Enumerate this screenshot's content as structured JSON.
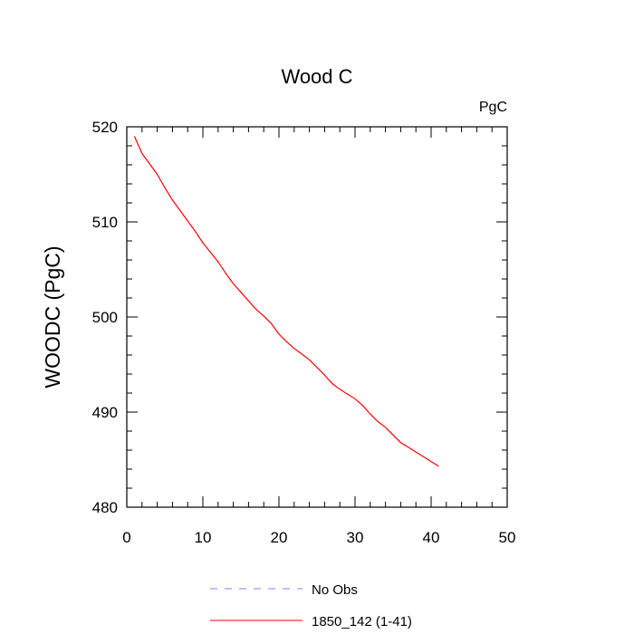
{
  "chart_data": {
    "type": "line",
    "title": "Wood C",
    "units": "PgC",
    "xlabel": "",
    "ylabel": "WOODC  (PgC)",
    "xlim": [
      0,
      50
    ],
    "ylim": [
      480,
      520
    ],
    "xticks": [
      0,
      10,
      20,
      30,
      40,
      50
    ],
    "yticks": [
      480,
      490,
      500,
      510,
      520
    ],
    "grid": false,
    "legend_position": "bottom-center",
    "series": [
      {
        "name": "No Obs",
        "color": "#8080ff",
        "dash": "dashed",
        "x": [],
        "y": []
      },
      {
        "name": "1850_142 (1-41)",
        "color": "#ff0000",
        "dash": "solid",
        "x": [
          1,
          2,
          3,
          4,
          5,
          6,
          7,
          8,
          9,
          10,
          11,
          12,
          13,
          14,
          15,
          16,
          17,
          18,
          19,
          20,
          21,
          22,
          23,
          24,
          25,
          26,
          27,
          28,
          29,
          30,
          31,
          32,
          33,
          34,
          35,
          36,
          37,
          38,
          39,
          40,
          41
        ],
        "y": [
          519.0,
          517.2,
          516.1,
          515.0,
          513.6,
          512.3,
          511.2,
          510.1,
          509.0,
          507.8,
          506.8,
          505.8,
          504.6,
          503.5,
          502.6,
          501.7,
          500.8,
          500.1,
          499.3,
          498.2,
          497.4,
          496.7,
          496.1,
          495.5,
          494.7,
          493.9,
          493.0,
          492.4,
          491.9,
          491.4,
          490.7,
          489.8,
          489.0,
          488.4,
          487.6,
          486.8,
          486.3,
          485.8,
          485.3,
          484.8,
          484.3
        ]
      }
    ]
  }
}
